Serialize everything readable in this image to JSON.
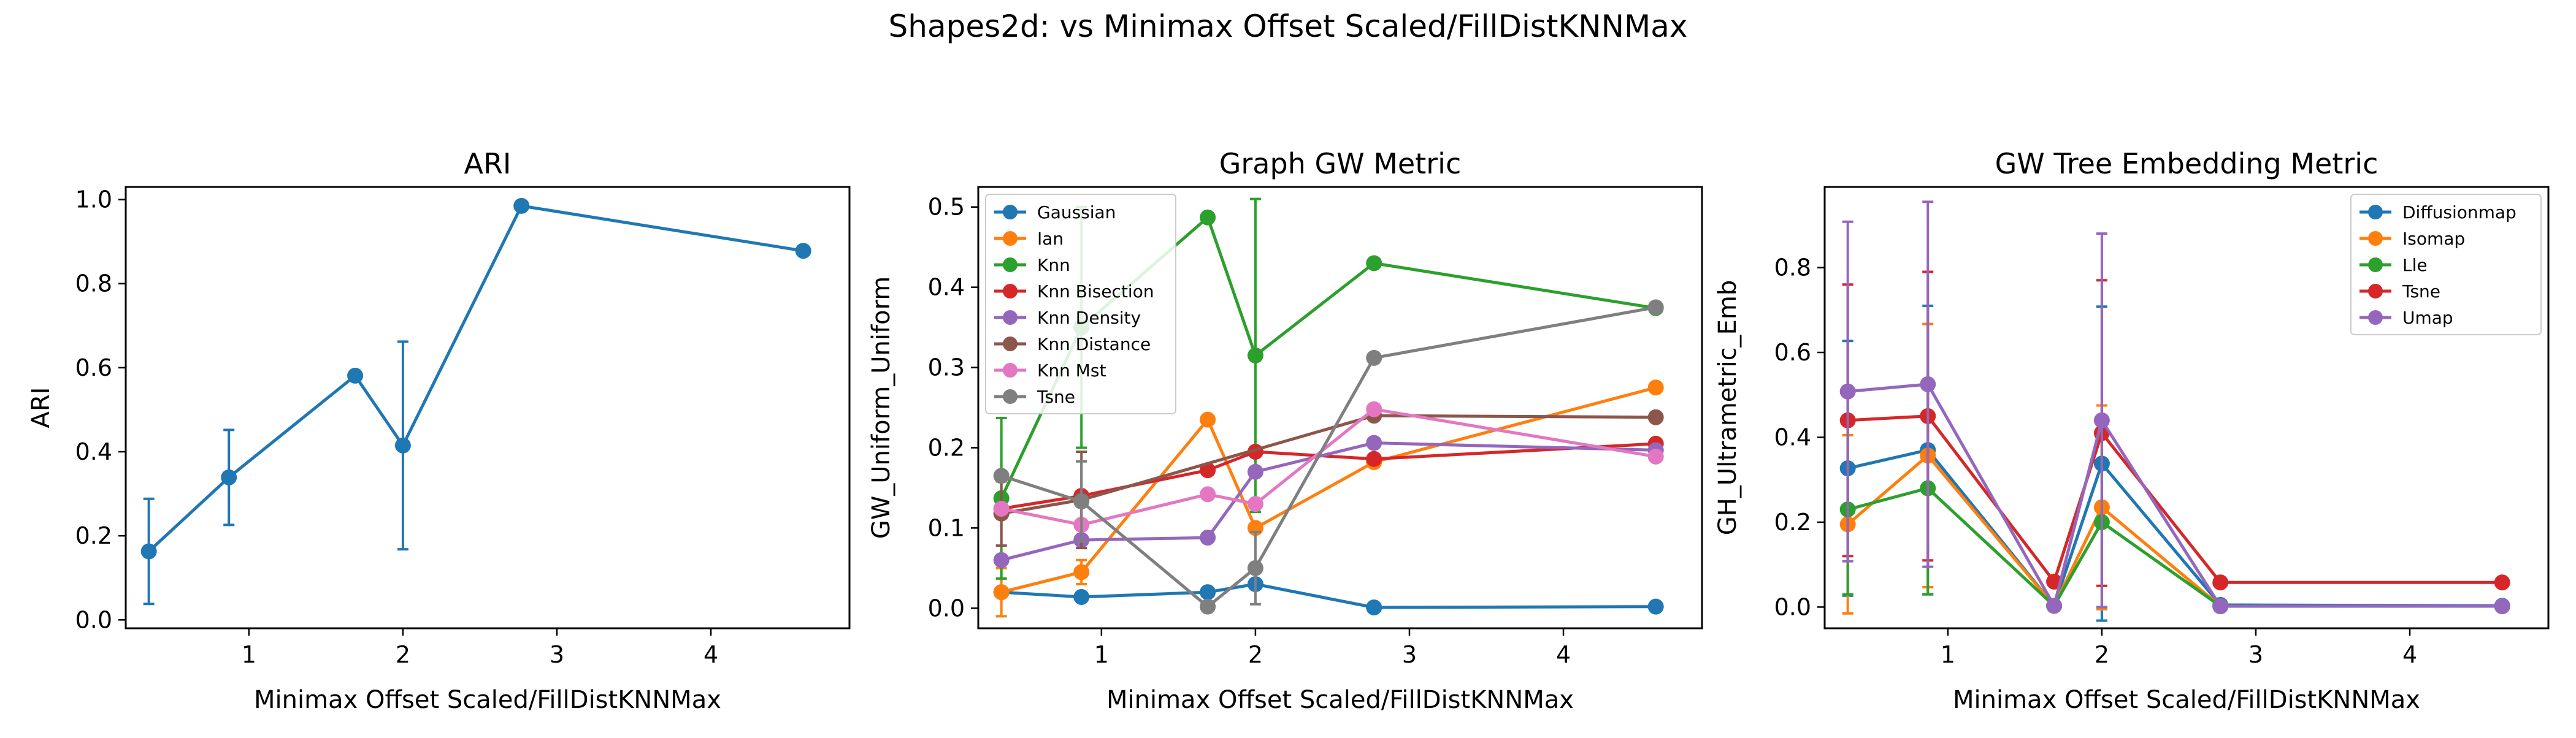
{
  "figure": {
    "suptitle": "Shapes2d: vs Minimax Offset Scaled/FillDistKNNMax"
  },
  "chart_data": [
    {
      "type": "line",
      "title": "ARI",
      "xlabel": "Minimax Offset Scaled/FillDistKNNMax",
      "ylabel": "ARI",
      "xlim": [
        0.2,
        4.9
      ],
      "ylim": [
        -0.02,
        1.03
      ],
      "xticks": [
        1,
        2,
        3,
        4
      ],
      "yticks": [
        0.0,
        0.2,
        0.4,
        0.6,
        0.8,
        1.0
      ],
      "legend": null,
      "x": [
        0.35,
        0.87,
        1.69,
        2.0,
        2.77,
        4.6
      ],
      "series": [
        {
          "name": "",
          "color": "#1f77b4",
          "values": [
            0.163,
            0.339,
            0.581,
            0.415,
            0.985,
            0.878
          ],
          "err": [
            0.125,
            0.113,
            null,
            0.247,
            null,
            null
          ]
        }
      ]
    },
    {
      "type": "line",
      "title": "Graph GW Metric",
      "xlabel": "Minimax Offset Scaled/FillDistKNNMax",
      "ylabel": "GW_Uniform_Uniform",
      "xlim": [
        0.2,
        4.9
      ],
      "ylim": [
        -0.025,
        0.525
      ],
      "xticks": [
        1,
        2,
        3,
        4
      ],
      "yticks": [
        0.0,
        0.1,
        0.2,
        0.3,
        0.4,
        0.5
      ],
      "legend": "top-left",
      "x": [
        0.35,
        0.87,
        1.69,
        2.0,
        2.77,
        4.6
      ],
      "series": [
        {
          "name": "Gaussian",
          "color": "#1f77b4",
          "values": [
            0.02,
            0.014,
            0.02,
            0.03,
            0.001,
            0.002
          ],
          "err": [
            null,
            null,
            null,
            null,
            null,
            null
          ]
        },
        {
          "name": "Ian",
          "color": "#ff7f0e",
          "values": [
            0.02,
            0.045,
            0.235,
            0.1,
            0.182,
            0.275
          ],
          "err": [
            0.03,
            0.015,
            null,
            null,
            null,
            null
          ]
        },
        {
          "name": "Knn",
          "color": "#2ca02c",
          "values": [
            0.137,
            0.35,
            0.487,
            0.315,
            0.43,
            0.374
          ],
          "err": [
            0.1,
            0.15,
            null,
            0.195,
            null,
            null
          ]
        },
        {
          "name": "Knn Bisection",
          "color": "#d62728",
          "values": [
            0.124,
            0.14,
            0.172,
            0.195,
            0.186,
            0.205
          ],
          "err": [
            null,
            null,
            null,
            null,
            null,
            null
          ]
        },
        {
          "name": "Knn Density",
          "color": "#9467bd",
          "values": [
            0.06,
            0.085,
            0.088,
            0.17,
            0.206,
            0.197
          ],
          "err": [
            null,
            null,
            null,
            null,
            null,
            null
          ]
        },
        {
          "name": "Knn Distance",
          "color": "#8c564b",
          "values": [
            0.118,
            0.135,
            null,
            null,
            0.24,
            0.238
          ],
          "err": [
            0.04,
            0.06,
            null,
            null,
            null,
            null
          ]
        },
        {
          "name": "Knn Mst",
          "color": "#e377c2",
          "values": [
            0.124,
            0.104,
            0.142,
            0.13,
            0.248,
            0.189
          ],
          "err": [
            null,
            null,
            null,
            null,
            null,
            null
          ]
        },
        {
          "name": "Tsne",
          "color": "#7f7f7f",
          "values": [
            0.165,
            0.133,
            0.002,
            0.05,
            0.312,
            0.375
          ],
          "err": [
            null,
            0.05,
            null,
            0.045,
            null,
            null
          ]
        }
      ]
    },
    {
      "type": "line",
      "title": "GW Tree Embedding Metric",
      "xlabel": "Minimax Offset Scaled/FillDistKNNMax",
      "ylabel": "GH_Ultrametric_Emb",
      "xlim": [
        0.2,
        4.9
      ],
      "ylim": [
        -0.05,
        0.99
      ],
      "xticks": [
        1,
        2,
        3,
        4
      ],
      "yticks": [
        0.0,
        0.2,
        0.4,
        0.6,
        0.8
      ],
      "legend": "top-right",
      "x": [
        0.35,
        0.87,
        1.69,
        2.0,
        2.77,
        4.6
      ],
      "series": [
        {
          "name": "Diffusionmap",
          "color": "#1f77b4",
          "values": [
            0.327,
            0.37,
            0.003,
            0.338,
            0.005,
            0.003
          ],
          "err": [
            0.3,
            0.34,
            null,
            0.37,
            null,
            null
          ]
        },
        {
          "name": "Isomap",
          "color": "#ff7f0e",
          "values": [
            0.195,
            0.357,
            0.003,
            0.235,
            0.002,
            0.002
          ],
          "err": [
            0.21,
            0.31,
            null,
            0.24,
            null,
            null
          ]
        },
        {
          "name": "Lle",
          "color": "#2ca02c",
          "values": [
            0.23,
            0.28,
            0.003,
            0.2,
            0.002,
            0.002
          ],
          "err": [
            0.2,
            0.25,
            null,
            0.2,
            null,
            null
          ]
        },
        {
          "name": "Tsne",
          "color": "#d62728",
          "values": [
            0.44,
            0.45,
            0.06,
            0.41,
            0.058,
            0.058
          ],
          "err": [
            0.32,
            0.34,
            null,
            0.36,
            null,
            null
          ]
        },
        {
          "name": "Umap",
          "color": "#9467bd",
          "values": [
            0.508,
            0.525,
            0.003,
            0.44,
            0.002,
            0.002
          ],
          "err": [
            0.4,
            0.43,
            null,
            0.44,
            null,
            null
          ]
        }
      ]
    }
  ]
}
